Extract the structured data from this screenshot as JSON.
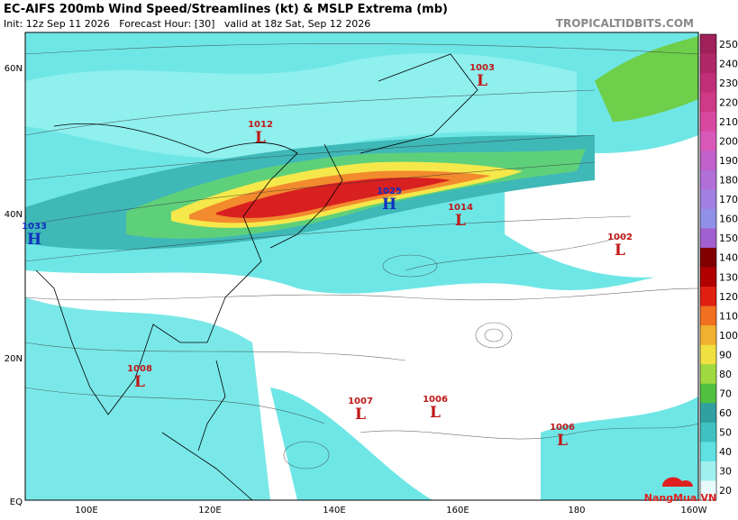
{
  "header": {
    "title": "EC-AIFS 200mb Wind Speed/Streamlines (kt) & MSLP Extrema (mb)",
    "subtitle": "Init: 12z Sep 11 2026   Forecast Hour: [30]   valid at 18z Sat, Sep 12 2026",
    "site": "TROPICALTIDBITS.COM"
  },
  "lat_labels": [
    "60N",
    "40N",
    "20N",
    "EQ"
  ],
  "lon_labels": [
    "100E",
    "120E",
    "140E",
    "160E",
    "180",
    "160W"
  ],
  "extrema": [
    {
      "pressure": "1003",
      "symbol": "L"
    },
    {
      "pressure": "1012",
      "symbol": "L"
    },
    {
      "pressure": "1025",
      "symbol": "H"
    },
    {
      "pressure": "1014",
      "symbol": "L"
    },
    {
      "pressure": "1033",
      "symbol": "H"
    },
    {
      "pressure": "1002",
      "symbol": "L"
    },
    {
      "pressure": "1008",
      "symbol": "L"
    },
    {
      "pressure": "1007",
      "symbol": "L"
    },
    {
      "pressure": "1006",
      "symbol": "L"
    },
    {
      "pressure": "1006",
      "symbol": "L"
    }
  ],
  "colorbar": {
    "labels": [
      250,
      240,
      230,
      220,
      210,
      200,
      190,
      180,
      170,
      160,
      150,
      140,
      130,
      120,
      110,
      100,
      90,
      80,
      70,
      60,
      50,
      40,
      30,
      20
    ]
  },
  "watermark": "NangMua.VN"
}
